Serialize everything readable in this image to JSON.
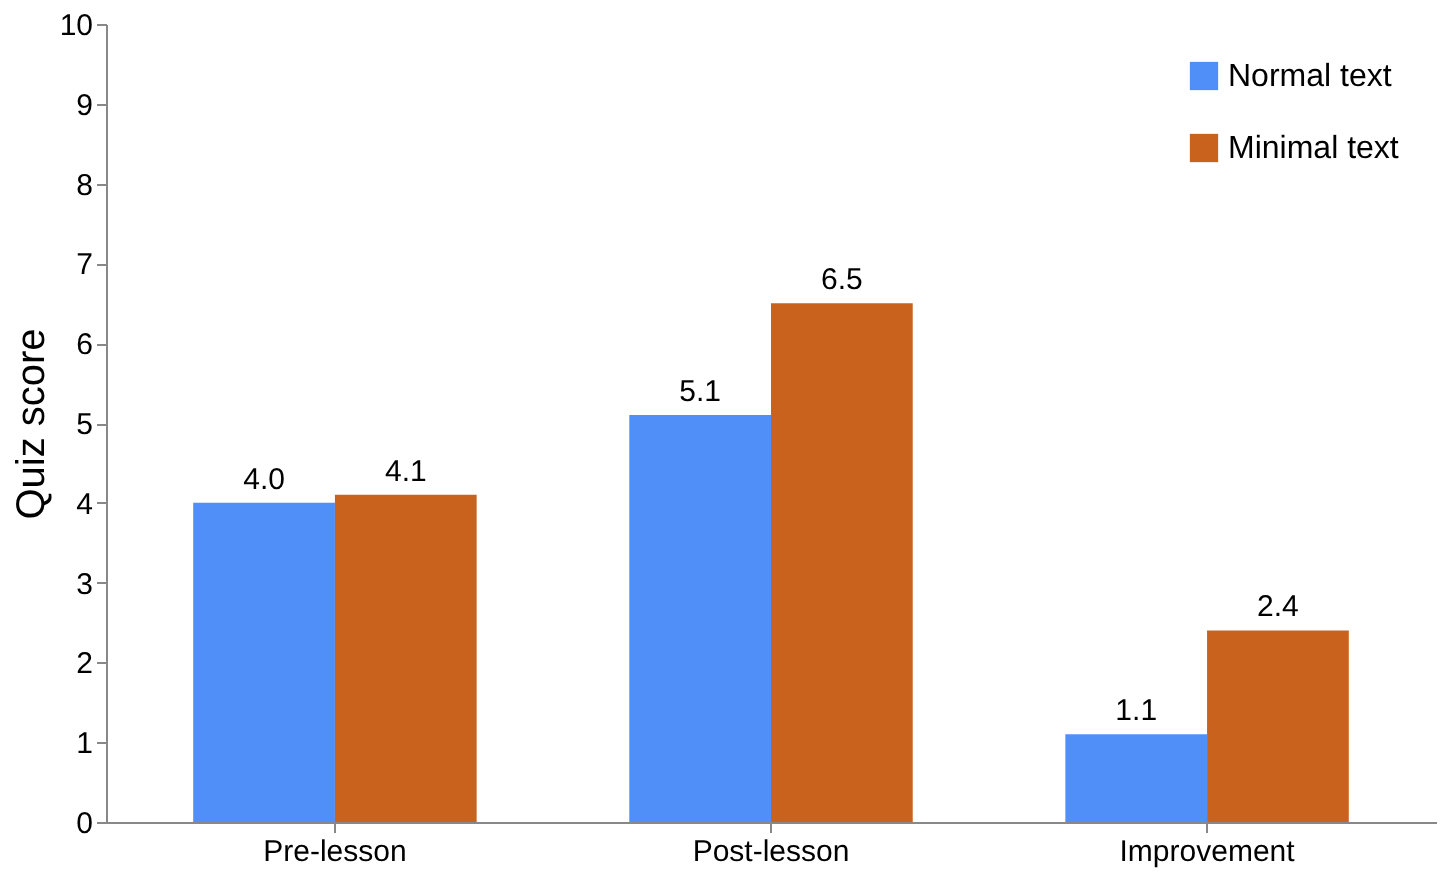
{
  "chart_data": {
    "type": "bar",
    "ylabel": "Quiz score",
    "categories": [
      "Pre-lesson",
      "Post-lesson",
      "Improvement"
    ],
    "series": [
      {
        "name": "Normal text",
        "color": "#4f8ff7",
        "values": [
          4.0,
          5.1,
          1.1
        ],
        "value_labels": [
          "4.0",
          "5.1",
          "1.1"
        ]
      },
      {
        "name": "Minimal text",
        "color": "#c8621c",
        "values": [
          4.1,
          6.5,
          2.4
        ],
        "value_labels": [
          "4.1",
          "6.5",
          "2.4"
        ]
      }
    ],
    "ylim": [
      0,
      10
    ],
    "yticks": [
      0,
      1,
      2,
      3,
      4,
      5,
      6,
      7,
      8,
      9,
      10
    ],
    "grid": false,
    "legend": "top right"
  }
}
